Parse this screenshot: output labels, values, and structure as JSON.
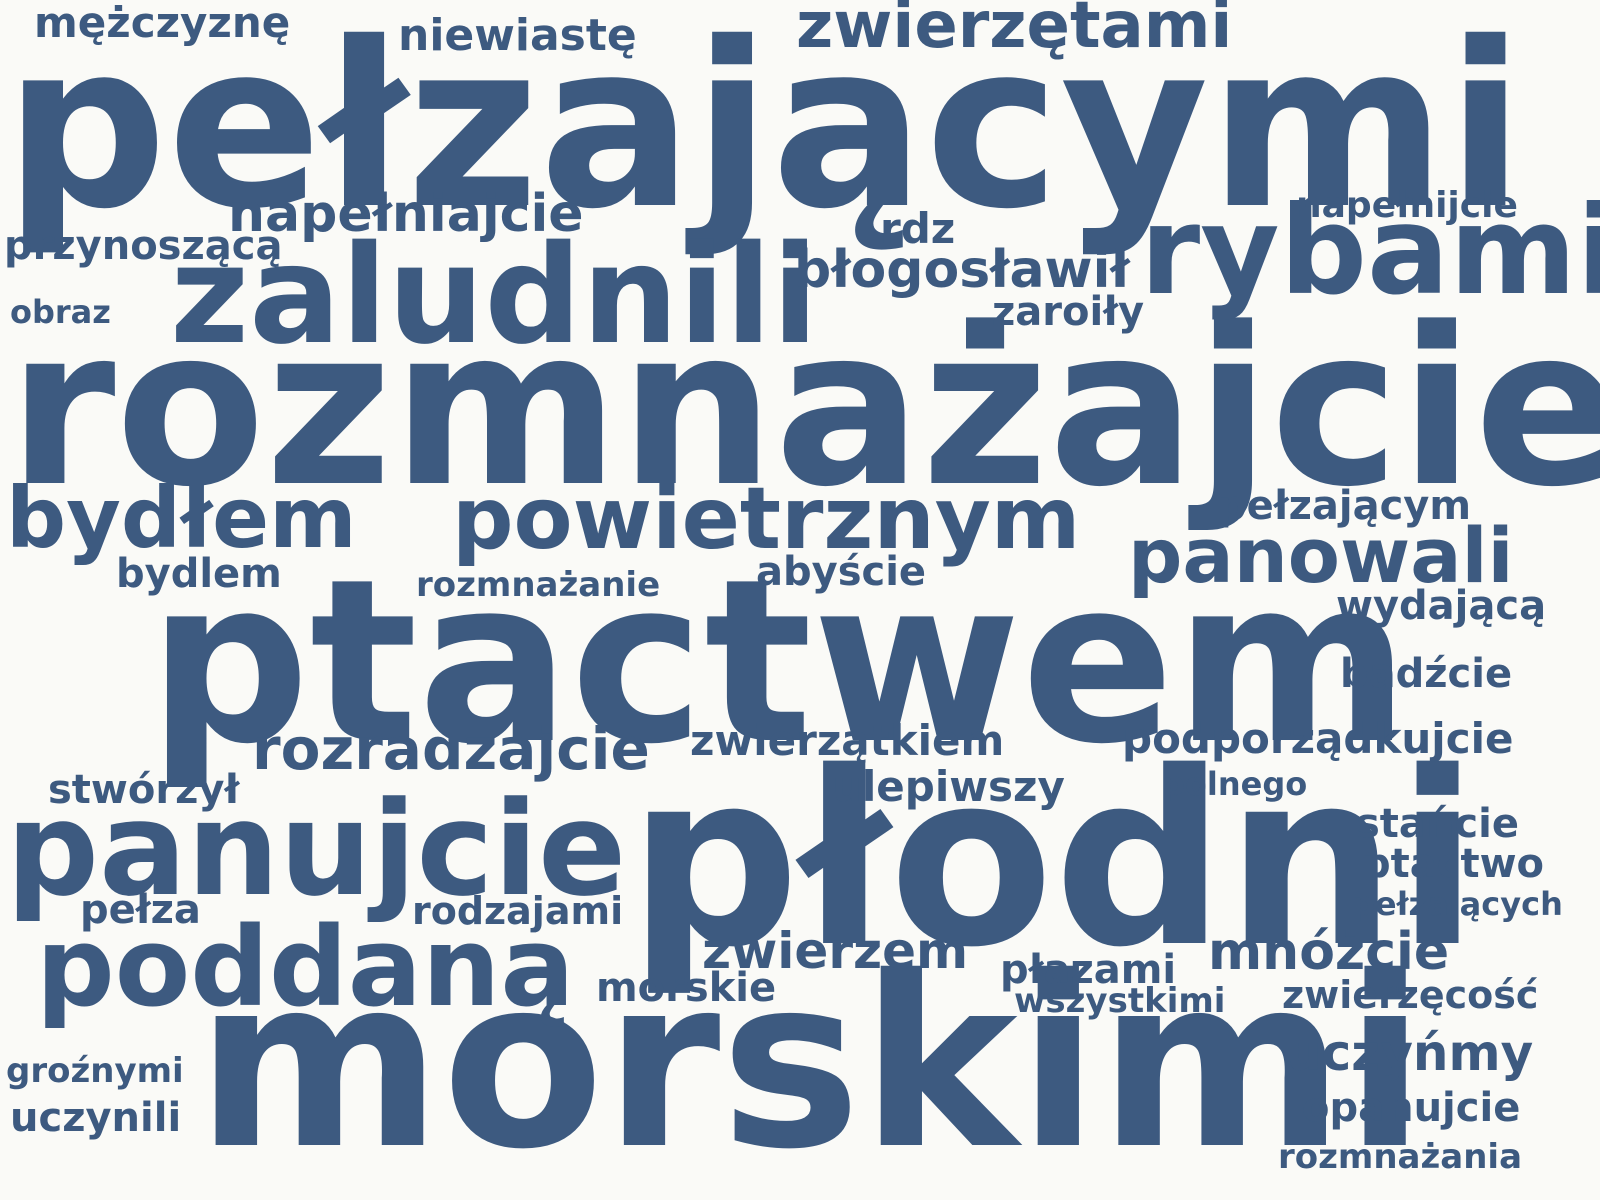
{
  "words": [
    {
      "text": "pełzającymi",
      "size": "huge"
    },
    {
      "text": "rozmnażajcie",
      "size": "huge"
    },
    {
      "text": "ptactwem",
      "size": "huge"
    },
    {
      "text": "płodni",
      "size": "huge"
    },
    {
      "text": "morskimi",
      "size": "huge"
    },
    {
      "text": "zaludnili",
      "size": "xl"
    },
    {
      "text": "rybami",
      "size": "xl"
    },
    {
      "text": "panujcie",
      "size": "xl"
    },
    {
      "text": "poddaną",
      "size": "xl"
    },
    {
      "text": "bydłem",
      "size": "l"
    },
    {
      "text": "powietrznym",
      "size": "l"
    },
    {
      "text": "panowali",
      "size": "l"
    },
    {
      "text": "zwierzętami",
      "size": "l"
    },
    {
      "text": "rozradzajcie",
      "size": "m"
    },
    {
      "text": "napełniajcie",
      "size": "m"
    },
    {
      "text": "błogosławił",
      "size": "m"
    },
    {
      "text": "mnóżcie",
      "size": "m"
    },
    {
      "text": "zwierzem",
      "size": "m"
    },
    {
      "text": "uczyńmy",
      "size": "m"
    },
    {
      "text": "podporządkujcie",
      "size": "s"
    },
    {
      "text": "zwierzątkiem",
      "size": "s"
    },
    {
      "text": "ulepiwszy",
      "size": "s"
    },
    {
      "text": "pełzającym",
      "size": "s"
    },
    {
      "text": "niewiastę",
      "size": "s"
    },
    {
      "text": "mężczyznę",
      "size": "s"
    },
    {
      "text": "przynoszącą",
      "size": "s"
    },
    {
      "text": "bydlem",
      "size": "s"
    },
    {
      "text": "abyście",
      "size": "s"
    },
    {
      "text": "bądźcie",
      "size": "s"
    },
    {
      "text": "wydającą",
      "size": "s"
    },
    {
      "text": "stwórzył",
      "size": "s"
    },
    {
      "text": "stańcie",
      "size": "s"
    },
    {
      "text": "ptactwo",
      "size": "s"
    },
    {
      "text": "pełza",
      "size": "s"
    },
    {
      "text": "rodzajami",
      "size": "s"
    },
    {
      "text": "morskie",
      "size": "s"
    },
    {
      "text": "płazami",
      "size": "s"
    },
    {
      "text": "zwierzęcość",
      "size": "s"
    },
    {
      "text": "opanujcie",
      "size": "s"
    },
    {
      "text": "uczynili",
      "size": "s"
    },
    {
      "text": "zaroiły",
      "size": "s"
    },
    {
      "text": "rdz",
      "size": "xs"
    },
    {
      "text": "napełnijcie",
      "size": "xs"
    },
    {
      "text": "rozmnażanie",
      "size": "xs"
    },
    {
      "text": "polnego",
      "size": "xs"
    },
    {
      "text": "pełzających",
      "size": "xs"
    },
    {
      "text": "wszystkimi",
      "size": "xs"
    },
    {
      "text": "groźnymi",
      "size": "xs"
    },
    {
      "text": "rozmnażania",
      "size": "xs"
    },
    {
      "text": "obraz",
      "size": "xs"
    }
  ],
  "colors": {
    "background": "#fafaf7",
    "text": "#3d5a80"
  }
}
